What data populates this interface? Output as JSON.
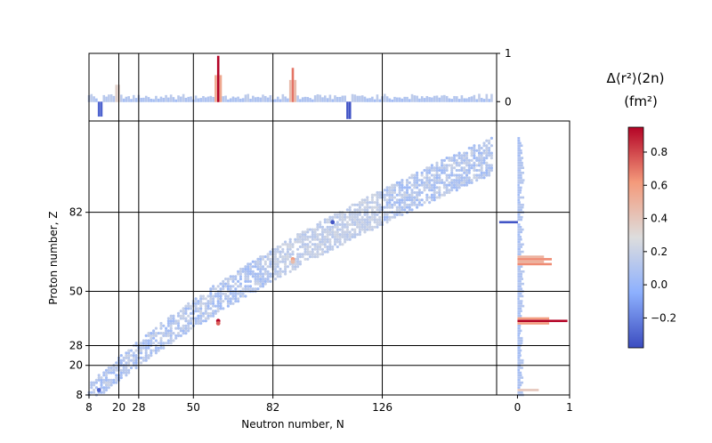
{
  "chart_data": {
    "type": "scatter",
    "title": "",
    "xlabel": "Neutron number, N",
    "ylabel": "Proton number, Z",
    "xlim": [
      8,
      172
    ],
    "ylim": [
      8,
      119
    ],
    "magic_numbers": [
      8,
      20,
      28,
      50,
      82,
      126
    ],
    "x_ticks": [
      "8",
      "20",
      "28",
      "50",
      "82",
      "126"
    ],
    "y_ticks": [
      "8",
      "20",
      "28",
      "50",
      "82"
    ],
    "colorbar": {
      "label_line1": "Δ⟨r²⟩(2n)",
      "label_line2": "(fm²)",
      "vmin": -0.38,
      "vmax": 0.95,
      "ticks": [
        "−0.2",
        "0.0",
        "0.2",
        "0.4",
        "0.6",
        "0.8"
      ],
      "colormap": "coolwarm"
    },
    "marginal_top": {
      "yticks": [
        "0",
        "1"
      ],
      "ylim": [
        -0.4,
        1.0
      ]
    },
    "marginal_right": {
      "xticks": [
        "0",
        "1"
      ],
      "xlim": [
        -0.4,
        1.0
      ]
    },
    "highlights": [
      {
        "N": 60,
        "Z": 38,
        "value": 0.95
      },
      {
        "N": 60,
        "Z": 37,
        "value": 0.75
      },
      {
        "N": 90,
        "Z": 63,
        "value": 0.6
      },
      {
        "N": 90,
        "Z": 62,
        "value": 0.45
      },
      {
        "N": 12,
        "Z": 10,
        "value": -0.3
      },
      {
        "N": 106,
        "Z": 78,
        "value": -0.35
      }
    ],
    "colors": {
      "magic_line": "#000000",
      "low": "#3b4cc0",
      "mid": "#dddddd",
      "high": "#b40426"
    }
  }
}
